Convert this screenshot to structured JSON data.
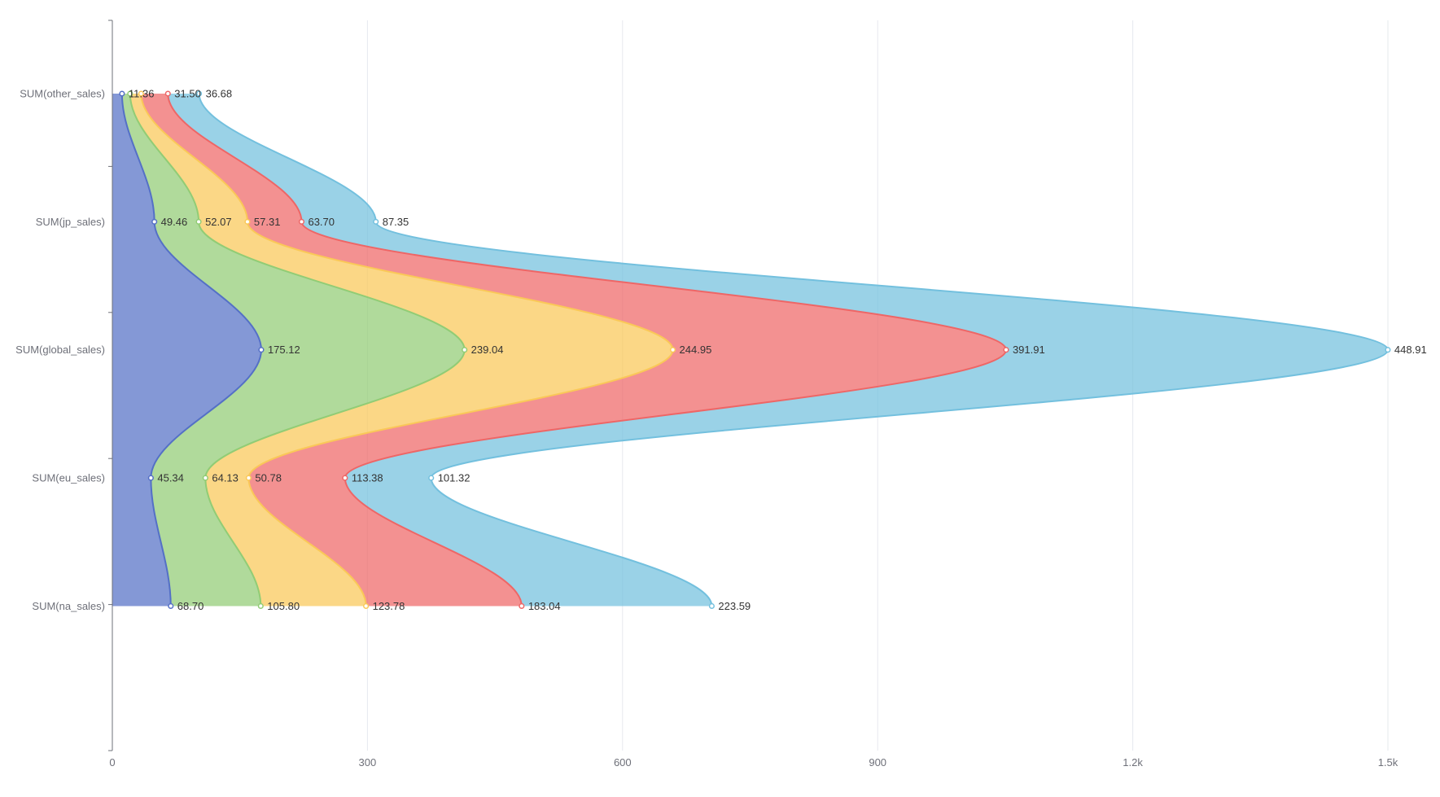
{
  "chart_data": {
    "type": "area",
    "orientation": "horizontal",
    "stacked": true,
    "smooth": true,
    "categories": [
      "SUM(other_sales)",
      "SUM(jp_sales)",
      "SUM(global_sales)",
      "SUM(eu_sales)",
      "SUM(na_sales)"
    ],
    "x_axis": {
      "min": 0,
      "max": 1500,
      "ticks": [
        {
          "value": 0,
          "label": "0"
        },
        {
          "value": 300,
          "label": "300"
        },
        {
          "value": 600,
          "label": "600"
        },
        {
          "value": 900,
          "label": "900"
        },
        {
          "value": 1200,
          "label": "1.2k"
        },
        {
          "value": 1500,
          "label": "1.5k"
        }
      ],
      "grid": true
    },
    "series": [
      {
        "color": "#5470c6",
        "values": [
          11.36,
          49.46,
          175.12,
          45.34,
          68.7
        ],
        "labels": [
          "11.36",
          "49.46",
          "175.12",
          "45.34",
          "68.70"
        ]
      },
      {
        "color": "#91cc75",
        "values": [
          9.5,
          52.07,
          239.04,
          64.13,
          105.8
        ],
        "labels": [
          "",
          "52.07",
          "239.04",
          "64.13",
          "105.80"
        ]
      },
      {
        "color": "#fac858",
        "values": [
          13.0,
          57.31,
          244.95,
          50.78,
          123.78
        ],
        "labels": [
          "",
          "57.31",
          "244.95",
          "50.78",
          "123.78"
        ]
      },
      {
        "color": "#ee6666",
        "values": [
          31.5,
          63.7,
          391.91,
          113.38,
          183.04
        ],
        "labels": [
          "31.50",
          "63.70",
          "391.91",
          "113.38",
          "183.04"
        ]
      },
      {
        "color": "#73c0de",
        "values": [
          36.68,
          87.35,
          448.91,
          101.32,
          223.59
        ],
        "labels": [
          "36.68",
          "87.35",
          "448.91",
          "101.32",
          "223.59"
        ]
      }
    ]
  }
}
